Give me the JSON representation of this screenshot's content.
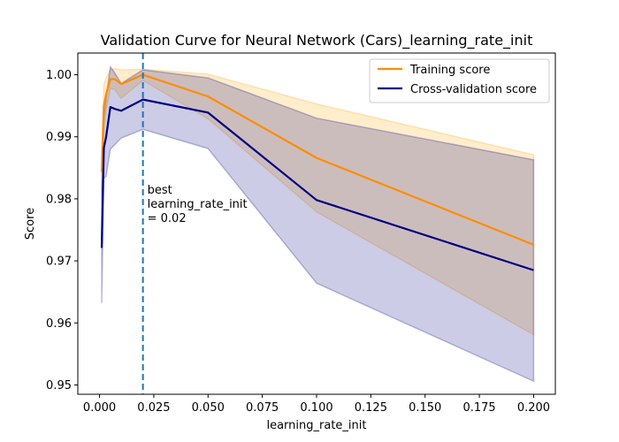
{
  "chart_data": {
    "type": "line",
    "title": "Validation Curve for Neural Network (Cars)_learning_rate_init",
    "xlabel": "learning_rate_init",
    "ylabel": "Score",
    "xlim": [
      -0.01,
      0.21
    ],
    "ylim": [
      0.9485,
      1.0035
    ],
    "x": [
      0.001,
      0.002,
      0.003,
      0.005,
      0.007,
      0.01,
      0.02,
      0.05,
      0.1,
      0.2
    ],
    "x_ticks": [
      0.0,
      0.025,
      0.05,
      0.075,
      0.1,
      0.125,
      0.15,
      0.175,
      0.2
    ],
    "x_tick_labels": [
      "0.000",
      "0.025",
      "0.050",
      "0.075",
      "0.100",
      "0.125",
      "0.150",
      "0.175",
      "0.200"
    ],
    "y_ticks": [
      0.95,
      0.96,
      0.97,
      0.98,
      0.99,
      1.0
    ],
    "y_tick_labels": [
      "0.95",
      "0.96",
      "0.97",
      "0.98",
      "0.99",
      "1.00"
    ],
    "series": [
      {
        "name": "Training score",
        "color": "#ff8c00",
        "band_color": "#ffa500",
        "values": [
          0.9843,
          0.995,
          0.9968,
          0.9993,
          0.9993,
          0.9985,
          1.0,
          0.9965,
          0.9866,
          0.9726
        ],
        "upper": [
          0.9872,
          0.9985,
          0.9995,
          1.0008,
          1.001,
          1.0008,
          1.0009,
          1.0001,
          0.9953,
          0.9871
        ],
        "lower": [
          0.9814,
          0.9915,
          0.9941,
          0.9978,
          0.9976,
          0.9962,
          0.9991,
          0.9929,
          0.9779,
          0.9581
        ]
      },
      {
        "name": "Cross-validation score",
        "color": "#000080",
        "band_color": "#000080",
        "values": [
          0.9721,
          0.9882,
          0.9899,
          0.9948,
          0.9945,
          0.9942,
          0.996,
          0.9939,
          0.9798,
          0.9685
        ],
        "upper": [
          0.9811,
          0.9931,
          0.9962,
          1.0013,
          1.0003,
          0.9986,
          1.0008,
          0.9995,
          0.993,
          0.9863
        ],
        "lower": [
          0.9632,
          0.9833,
          0.9836,
          0.988,
          0.9887,
          0.9898,
          0.9912,
          0.9881,
          0.9664,
          0.9506
        ]
      }
    ],
    "best_line": {
      "x": 0.02,
      "color": "#1f77b4",
      "label_lines": [
        "best",
        "learning_rate_init",
        "= 0.02"
      ]
    },
    "legend_position": "top-right",
    "grid": false
  }
}
